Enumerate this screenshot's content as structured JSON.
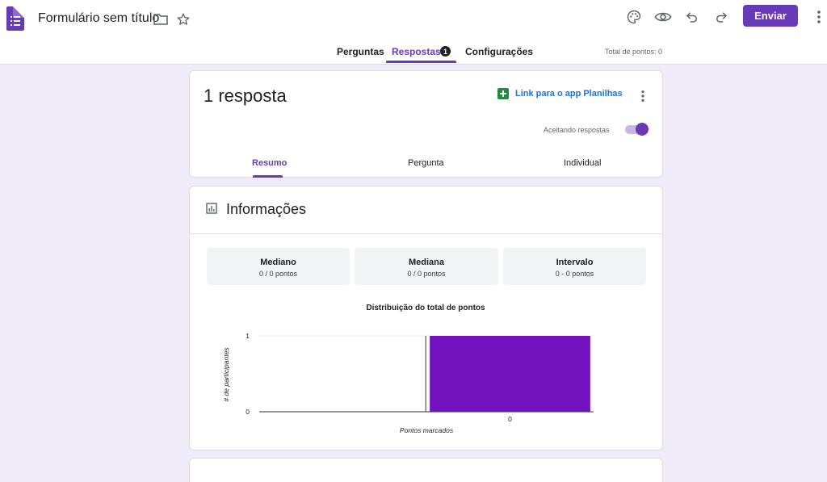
{
  "header": {
    "doc_title": "Formulário sem título",
    "send_label": "Enviar",
    "icons": [
      "forms-logo-icon",
      "folder-icon",
      "star-icon",
      "palette-icon",
      "eye-icon",
      "undo-icon",
      "redo-icon",
      "more-vert-icon"
    ]
  },
  "tabs": {
    "questions": "Perguntas",
    "responses": "Respostas",
    "responses_badge": "1",
    "settings": "Configurações",
    "total_points": "Total de pontos: 0"
  },
  "summary_card": {
    "count_label": "1 resposta",
    "sheets_link": "Link para o app Planilhas",
    "accepting_label": "Aceitando respostas",
    "accepting_on": true,
    "subtabs": [
      "Resumo",
      "Pergunta",
      "Individual"
    ]
  },
  "info_card": {
    "title": "Informações",
    "stats": [
      {
        "name": "Mediano",
        "value": "0 / 0 pontos"
      },
      {
        "name": "Mediana",
        "value": "0 / 0 pontos"
      },
      {
        "name": "Intervalo",
        "value": "0 - 0 pontos"
      }
    ]
  },
  "chart_data": {
    "type": "bar",
    "title": "Distribuição do total de pontos",
    "xlabel": "Pontos marcados",
    "ylabel": "# de participantes",
    "categories": [
      "0"
    ],
    "values": [
      1
    ],
    "ylim": [
      0,
      1
    ],
    "yticks": [
      "0",
      "1"
    ],
    "bar_color": "#7212bf",
    "grid": true
  },
  "colors": {
    "accent": "#673ab7",
    "background": "#f0ebf8",
    "link": "#1a73e8",
    "sheets": "#1e8e3e"
  }
}
